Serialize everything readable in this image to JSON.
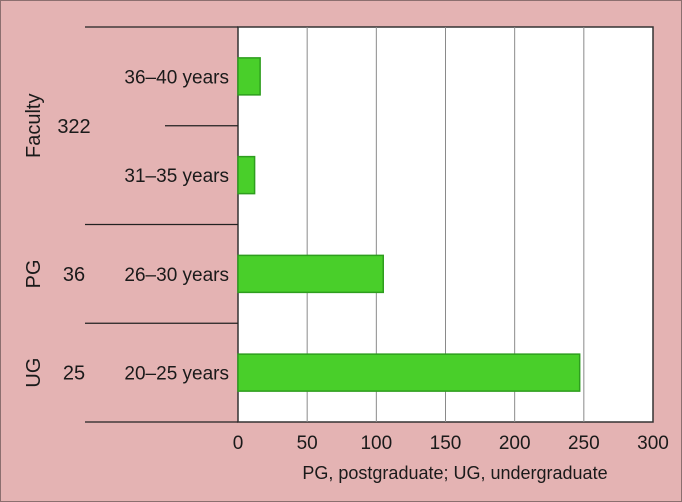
{
  "chart_data": {
    "type": "bar",
    "orientation": "horizontal",
    "categories": [
      "36–40 years",
      "31–35 years",
      "26–30 years",
      "20–25 years"
    ],
    "values": [
      16,
      12,
      105,
      247
    ],
    "groups": [
      {
        "label": "Faculty",
        "count": "322",
        "categories": [
          "36–40 years",
          "31–35 years"
        ]
      },
      {
        "label": "PG",
        "count": "36",
        "categories": [
          "26–30 years"
        ]
      },
      {
        "label": "UG",
        "count": "25",
        "categories": [
          "20–25 years"
        ]
      }
    ],
    "xticks": [
      "0",
      "50",
      "100",
      "150",
      "200",
      "250",
      "300"
    ],
    "xlim": [
      0,
      300
    ],
    "grid": true,
    "footnote": "PG, postgraduate; UG, undergraduate",
    "colors": {
      "bar": "#49cf2a",
      "bar_edge": "#2e9e1e",
      "grid": "#8a8a8a",
      "plot_bg": "#ffffff",
      "page_bg": "#e4b3b3"
    }
  }
}
